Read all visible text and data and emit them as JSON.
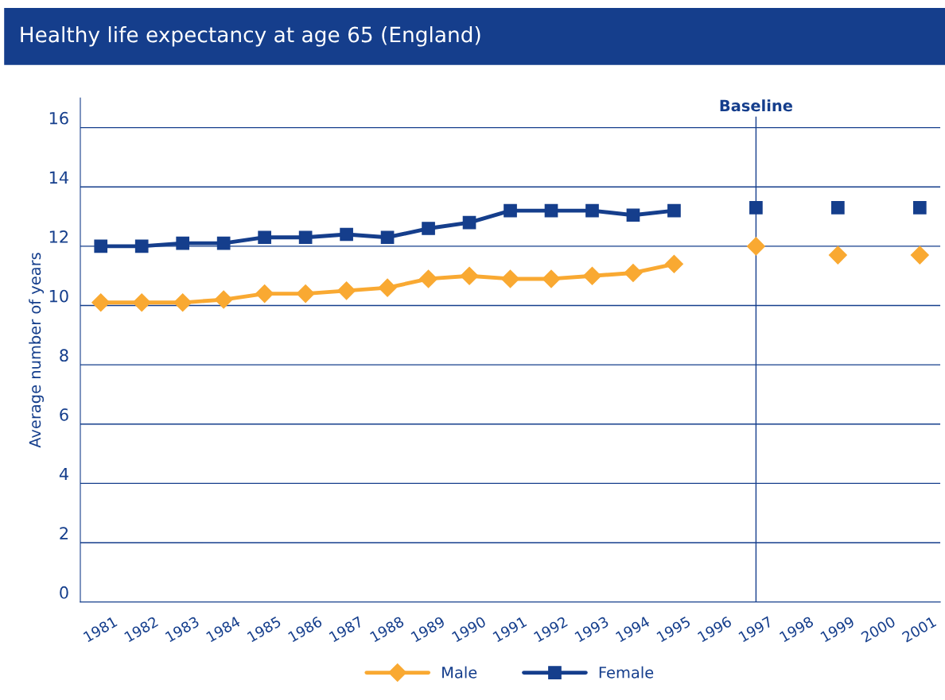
{
  "chart_data": {
    "type": "line",
    "title": "Healthy life expectancy at age 65 (England)",
    "ylabel": "Average number of years",
    "categories": [
      "1981",
      "1982",
      "1983",
      "1984",
      "1985",
      "1986",
      "1987",
      "1988",
      "1989",
      "1990",
      "1991",
      "1992",
      "1993",
      "1994",
      "1995",
      "1996",
      "1997",
      "1998",
      "1999",
      "2000",
      "2001"
    ],
    "series": [
      {
        "name": "Male",
        "color": "#f9a932",
        "marker": "diamond",
        "values": [
          10.1,
          10.1,
          10.1,
          10.2,
          10.4,
          10.4,
          10.5,
          10.6,
          10.9,
          11.0,
          10.9,
          10.9,
          11.0,
          11.1,
          11.4,
          null,
          12.0,
          null,
          11.7,
          null,
          11.7
        ]
      },
      {
        "name": "Female",
        "color": "#153e8c",
        "marker": "square",
        "values": [
          12.0,
          12.0,
          12.1,
          12.1,
          12.3,
          12.3,
          12.4,
          12.3,
          12.6,
          12.8,
          13.2,
          13.2,
          13.2,
          13.05,
          13.2,
          null,
          13.3,
          null,
          13.3,
          null,
          13.3
        ]
      }
    ],
    "ylim": [
      0,
      17
    ],
    "yticks": [
      0,
      2,
      4,
      6,
      8,
      10,
      12,
      14,
      16
    ],
    "grid": "y",
    "legend": "bottom",
    "ref_lines": [
      {
        "axis": "x",
        "value": "1997",
        "label": "Baseline",
        "color": "#153e8c"
      }
    ]
  }
}
